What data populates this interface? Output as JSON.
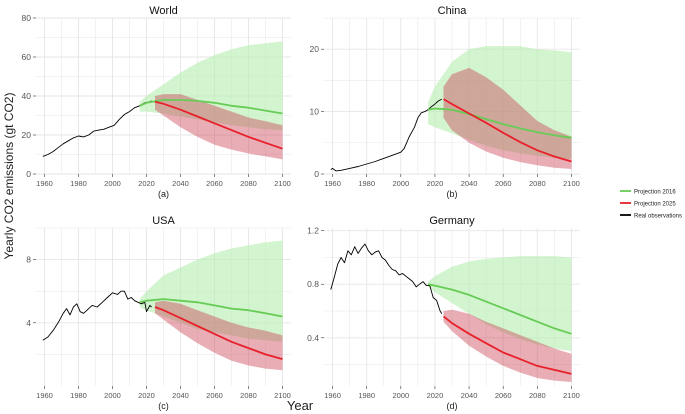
{
  "figure": {
    "ylabel": "Yearly CO2 emissions (gt CO2)",
    "xlabel": "Year",
    "legend": [
      {
        "label": "Projection 2016",
        "color": "#66cc55"
      },
      {
        "label": "Projection 2025",
        "color": "#e8202a"
      },
      {
        "label": "Real observations",
        "color": "#000000"
      }
    ]
  },
  "colors": {
    "band_2016": "#b6eeb0",
    "band_2025": "#cc4a5c",
    "line_2016": "#66cc55",
    "line_2025": "#e8202a",
    "observed": "#000000",
    "grid": "#e6e6e6",
    "tick_text": "#555555"
  },
  "chart_data": [
    {
      "type": "line",
      "title": "World",
      "panel_label": "(a)",
      "xlim": [
        1955,
        2105
      ],
      "ylim": [
        0,
        80
      ],
      "xticks": [
        1960,
        1980,
        2000,
        2020,
        2040,
        2060,
        2080,
        2100
      ],
      "yticks": [
        0,
        20,
        40,
        60,
        80
      ],
      "observed": {
        "name": "Real observations",
        "x": [
          1959,
          1962,
          1965,
          1968,
          1971,
          1974,
          1977,
          1980,
          1983,
          1986,
          1989,
          1992,
          1995,
          1998,
          2001,
          2004,
          2007,
          2010,
          2013,
          2016,
          2019,
          2022,
          2023
        ],
        "y": [
          9,
          10,
          11.5,
          13.5,
          15.5,
          17,
          18.5,
          19.5,
          19,
          20,
          22,
          22.5,
          23,
          24,
          25,
          28,
          30.5,
          32,
          34,
          35,
          36.5,
          37,
          37.5
        ]
      },
      "series": [
        {
          "name": "Projection 2016",
          "x": [
            2016,
            2020,
            2030,
            2040,
            2050,
            2060,
            2070,
            2080,
            2090,
            2100
          ],
          "y": [
            35,
            36.5,
            38,
            38,
            37.5,
            36.5,
            35,
            34,
            32.5,
            31
          ],
          "band_low": [
            32,
            32,
            31,
            29.5,
            28,
            26.5,
            25,
            24,
            23,
            22.5
          ],
          "band_high": [
            37,
            40,
            46,
            52,
            57,
            61,
            64,
            66,
            67,
            68
          ]
        },
        {
          "name": "Projection 2025",
          "x": [
            2025,
            2030,
            2040,
            2050,
            2060,
            2070,
            2080,
            2090,
            2100
          ],
          "y": [
            37,
            36,
            33,
            29.5,
            26,
            22.5,
            19,
            16,
            13
          ],
          "band_low": [
            33,
            30,
            24,
            19,
            15,
            12.5,
            10.5,
            9,
            7.5
          ],
          "band_high": [
            40,
            41,
            41,
            38,
            35,
            32,
            29,
            27,
            25
          ]
        }
      ]
    },
    {
      "type": "line",
      "title": "China",
      "panel_label": "(b)",
      "xlim": [
        1955,
        2105
      ],
      "ylim": [
        0,
        25
      ],
      "xticks": [
        1960,
        1980,
        2000,
        2020,
        2040,
        2060,
        2080,
        2100
      ],
      "yticks": [
        0,
        10,
        20
      ],
      "observed": {
        "name": "Real observations",
        "x": [
          1959,
          1960,
          1962,
          1965,
          1970,
          1975,
          1980,
          1985,
          1990,
          1995,
          2000,
          2002,
          2005,
          2008,
          2010,
          2012,
          2014,
          2016,
          2018,
          2020,
          2022,
          2024
        ],
        "y": [
          0.7,
          0.9,
          0.5,
          0.6,
          0.9,
          1.2,
          1.6,
          2,
          2.5,
          3,
          3.5,
          4.1,
          6,
          7.5,
          9,
          9.8,
          10,
          10.3,
          10.8,
          11.2,
          11.7,
          12
        ]
      },
      "series": [
        {
          "name": "Projection 2016",
          "x": [
            2016,
            2020,
            2030,
            2040,
            2050,
            2060,
            2070,
            2080,
            2090,
            2100
          ],
          "y": [
            10.3,
            10.5,
            10.3,
            9.6,
            8.8,
            8,
            7.3,
            6.7,
            6.2,
            5.8
          ],
          "band_low": [
            8,
            7.5,
            6.5,
            5.5,
            4.5,
            3.8,
            3.3,
            2.9,
            2.6,
            2.4
          ],
          "band_high": [
            11.5,
            14,
            18,
            20,
            20.5,
            20.5,
            20.5,
            20,
            19.8,
            19.5
          ]
        },
        {
          "name": "Projection 2025",
          "x": [
            2025,
            2030,
            2040,
            2050,
            2060,
            2070,
            2080,
            2090,
            2100
          ],
          "y": [
            12,
            11.2,
            9.7,
            8.2,
            6.6,
            5.1,
            3.8,
            2.8,
            2
          ],
          "band_low": [
            9,
            7,
            5,
            3.6,
            2.6,
            1.9,
            1.4,
            1,
            0.8
          ],
          "band_high": [
            14,
            16,
            17,
            15.5,
            13.5,
            11,
            8.5,
            7,
            6
          ]
        }
      ]
    },
    {
      "type": "line",
      "title": "USA",
      "panel_label": "(c)",
      "xlim": [
        1955,
        2105
      ],
      "ylim": [
        0,
        10
      ],
      "xticks": [
        1960,
        1980,
        2000,
        2020,
        2040,
        2060,
        2080,
        2100
      ],
      "yticks": [
        4,
        8
      ],
      "observed": {
        "name": "Real observations",
        "x": [
          1959,
          1962,
          1965,
          1968,
          1971,
          1973,
          1975,
          1977,
          1979,
          1981,
          1983,
          1985,
          1988,
          1991,
          1994,
          1997,
          2000,
          2003,
          2005,
          2007,
          2009,
          2011,
          2013,
          2015,
          2017,
          2019,
          2020,
          2022,
          2023
        ],
        "y": [
          2.9,
          3.1,
          3.5,
          4,
          4.6,
          4.9,
          4.5,
          5,
          5.2,
          4.7,
          4.6,
          4.8,
          5.1,
          5,
          5.3,
          5.6,
          5.9,
          5.8,
          6,
          6,
          5.5,
          5.6,
          5.4,
          5.3,
          5.2,
          5.3,
          4.7,
          5.1,
          5
        ]
      },
      "series": [
        {
          "name": "Projection 2016",
          "x": [
            2016,
            2020,
            2030,
            2040,
            2050,
            2060,
            2070,
            2080,
            2090,
            2100
          ],
          "y": [
            5.3,
            5.4,
            5.5,
            5.4,
            5.3,
            5.1,
            4.9,
            4.8,
            4.6,
            4.4
          ],
          "band_low": [
            5,
            4.8,
            4.4,
            4,
            3.6,
            3.4,
            3.2,
            3,
            2.9,
            2.8
          ],
          "band_high": [
            5.5,
            6,
            7,
            7.5,
            8,
            8.4,
            8.7,
            8.9,
            9.1,
            9.2
          ]
        },
        {
          "name": "Projection 2025",
          "x": [
            2025,
            2030,
            2040,
            2050,
            2060,
            2070,
            2080,
            2090,
            2100
          ],
          "y": [
            5,
            4.8,
            4.3,
            3.8,
            3.3,
            2.8,
            2.4,
            2,
            1.7
          ],
          "band_low": [
            4.6,
            4.2,
            3.4,
            2.7,
            2.1,
            1.6,
            1.3,
            1.1,
            1
          ],
          "band_high": [
            5.3,
            5.4,
            5.2,
            4.8,
            4.4,
            4,
            3.7,
            3.5,
            3.2
          ]
        }
      ]
    },
    {
      "type": "line",
      "title": "Germany",
      "panel_label": "(d)",
      "xlim": [
        1955,
        2105
      ],
      "ylim": [
        0.04,
        1.22
      ],
      "xticks": [
        1960,
        1980,
        2000,
        2020,
        2040,
        2060,
        2080,
        2100
      ],
      "yticks": [
        0.4,
        0.8,
        1.2
      ],
      "observed": {
        "name": "Real observations",
        "x": [
          1959,
          1961,
          1963,
          1965,
          1967,
          1969,
          1971,
          1973,
          1975,
          1977,
          1979,
          1981,
          1983,
          1985,
          1987,
          1989,
          1991,
          1993,
          1995,
          1997,
          1999,
          2001,
          2003,
          2005,
          2007,
          2009,
          2011,
          2013,
          2015,
          2017,
          2019,
          2021,
          2023,
          2024
        ],
        "y": [
          0.76,
          0.85,
          0.95,
          1.0,
          0.96,
          1.05,
          1.02,
          1.08,
          1.03,
          1.07,
          1.1,
          1.05,
          1.02,
          1.04,
          1.05,
          1.0,
          0.98,
          0.94,
          0.91,
          0.9,
          0.87,
          0.88,
          0.86,
          0.84,
          0.82,
          0.78,
          0.8,
          0.82,
          0.79,
          0.79,
          0.7,
          0.68,
          0.6,
          0.58
        ]
      },
      "series": [
        {
          "name": "Projection 2016",
          "x": [
            2016,
            2020,
            2030,
            2040,
            2050,
            2060,
            2070,
            2080,
            2090,
            2100
          ],
          "y": [
            0.8,
            0.79,
            0.76,
            0.72,
            0.67,
            0.62,
            0.57,
            0.52,
            0.47,
            0.43
          ],
          "band_low": [
            0.78,
            0.74,
            0.66,
            0.58,
            0.5,
            0.44,
            0.39,
            0.35,
            0.32,
            0.3
          ],
          "band_high": [
            0.82,
            0.86,
            0.93,
            0.97,
            0.99,
            1.0,
            1.01,
            1.01,
            1.01,
            1.0
          ]
        },
        {
          "name": "Projection 2025",
          "x": [
            2025,
            2030,
            2040,
            2050,
            2060,
            2070,
            2080,
            2090,
            2100
          ],
          "y": [
            0.56,
            0.51,
            0.43,
            0.36,
            0.29,
            0.24,
            0.19,
            0.16,
            0.13
          ],
          "band_low": [
            0.52,
            0.45,
            0.34,
            0.26,
            0.19,
            0.14,
            0.1,
            0.08,
            0.07
          ],
          "band_high": [
            0.6,
            0.61,
            0.58,
            0.52,
            0.47,
            0.42,
            0.37,
            0.32,
            0.28
          ]
        }
      ]
    }
  ]
}
